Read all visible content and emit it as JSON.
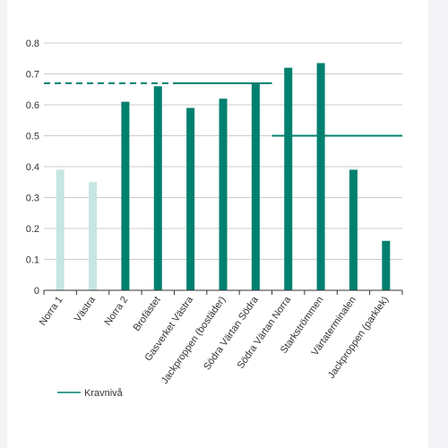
{
  "colors": {
    "bar_dark": "#00806f",
    "bar_light": "#c5e6e2",
    "requirement_line": "#00806f",
    "grid": "#cccccc",
    "axis": "#333333"
  },
  "legend": {
    "label": "Kravnivå"
  },
  "chart_data": {
    "type": "bar",
    "title": "",
    "xlabel": "",
    "ylabel": "",
    "ylim": [
      0,
      0.8
    ],
    "yticks": [
      0,
      0.1,
      0.2,
      0.3,
      0.4,
      0.5,
      0.6,
      0.7,
      0.8
    ],
    "ytick_labels": [
      "0",
      "0.1",
      "0.2",
      "0.3",
      "0.4",
      "0.5",
      "0.6",
      "0.7",
      "0.8"
    ],
    "grid": true,
    "legend_position": "bottom-left",
    "categories": [
      "Norra 1",
      "Västra",
      "Norra 2",
      "Brofästet",
      "Gasverket Västra",
      "Jackproppen (bostäder)",
      "Södra Värtan Södra",
      "Södra Värtan Norra",
      "Starkströmmen",
      "Värtaterminalen",
      "Jackproppen (parklek)"
    ],
    "values": [
      0.39,
      0.35,
      0.61,
      0.66,
      0.59,
      0.62,
      0.67,
      0.72,
      0.735,
      0.39,
      0.16
    ],
    "bar_style": [
      "light",
      "light",
      "dark",
      "dark",
      "dark",
      "dark",
      "dark",
      "dark",
      "dark",
      "dark",
      "dark"
    ],
    "requirement_levels": [
      {
        "name": "Kravnivå",
        "value": 0.67,
        "from_category": 0,
        "to_category": 3,
        "style": "dashed"
      },
      {
        "name": "Kravnivå",
        "value": 0.67,
        "from_category": 4,
        "to_category": 6,
        "style": "solid"
      },
      {
        "name": "Kravnivå",
        "value": 0.5,
        "from_category": 7,
        "to_category": 10,
        "style": "solid"
      }
    ]
  }
}
